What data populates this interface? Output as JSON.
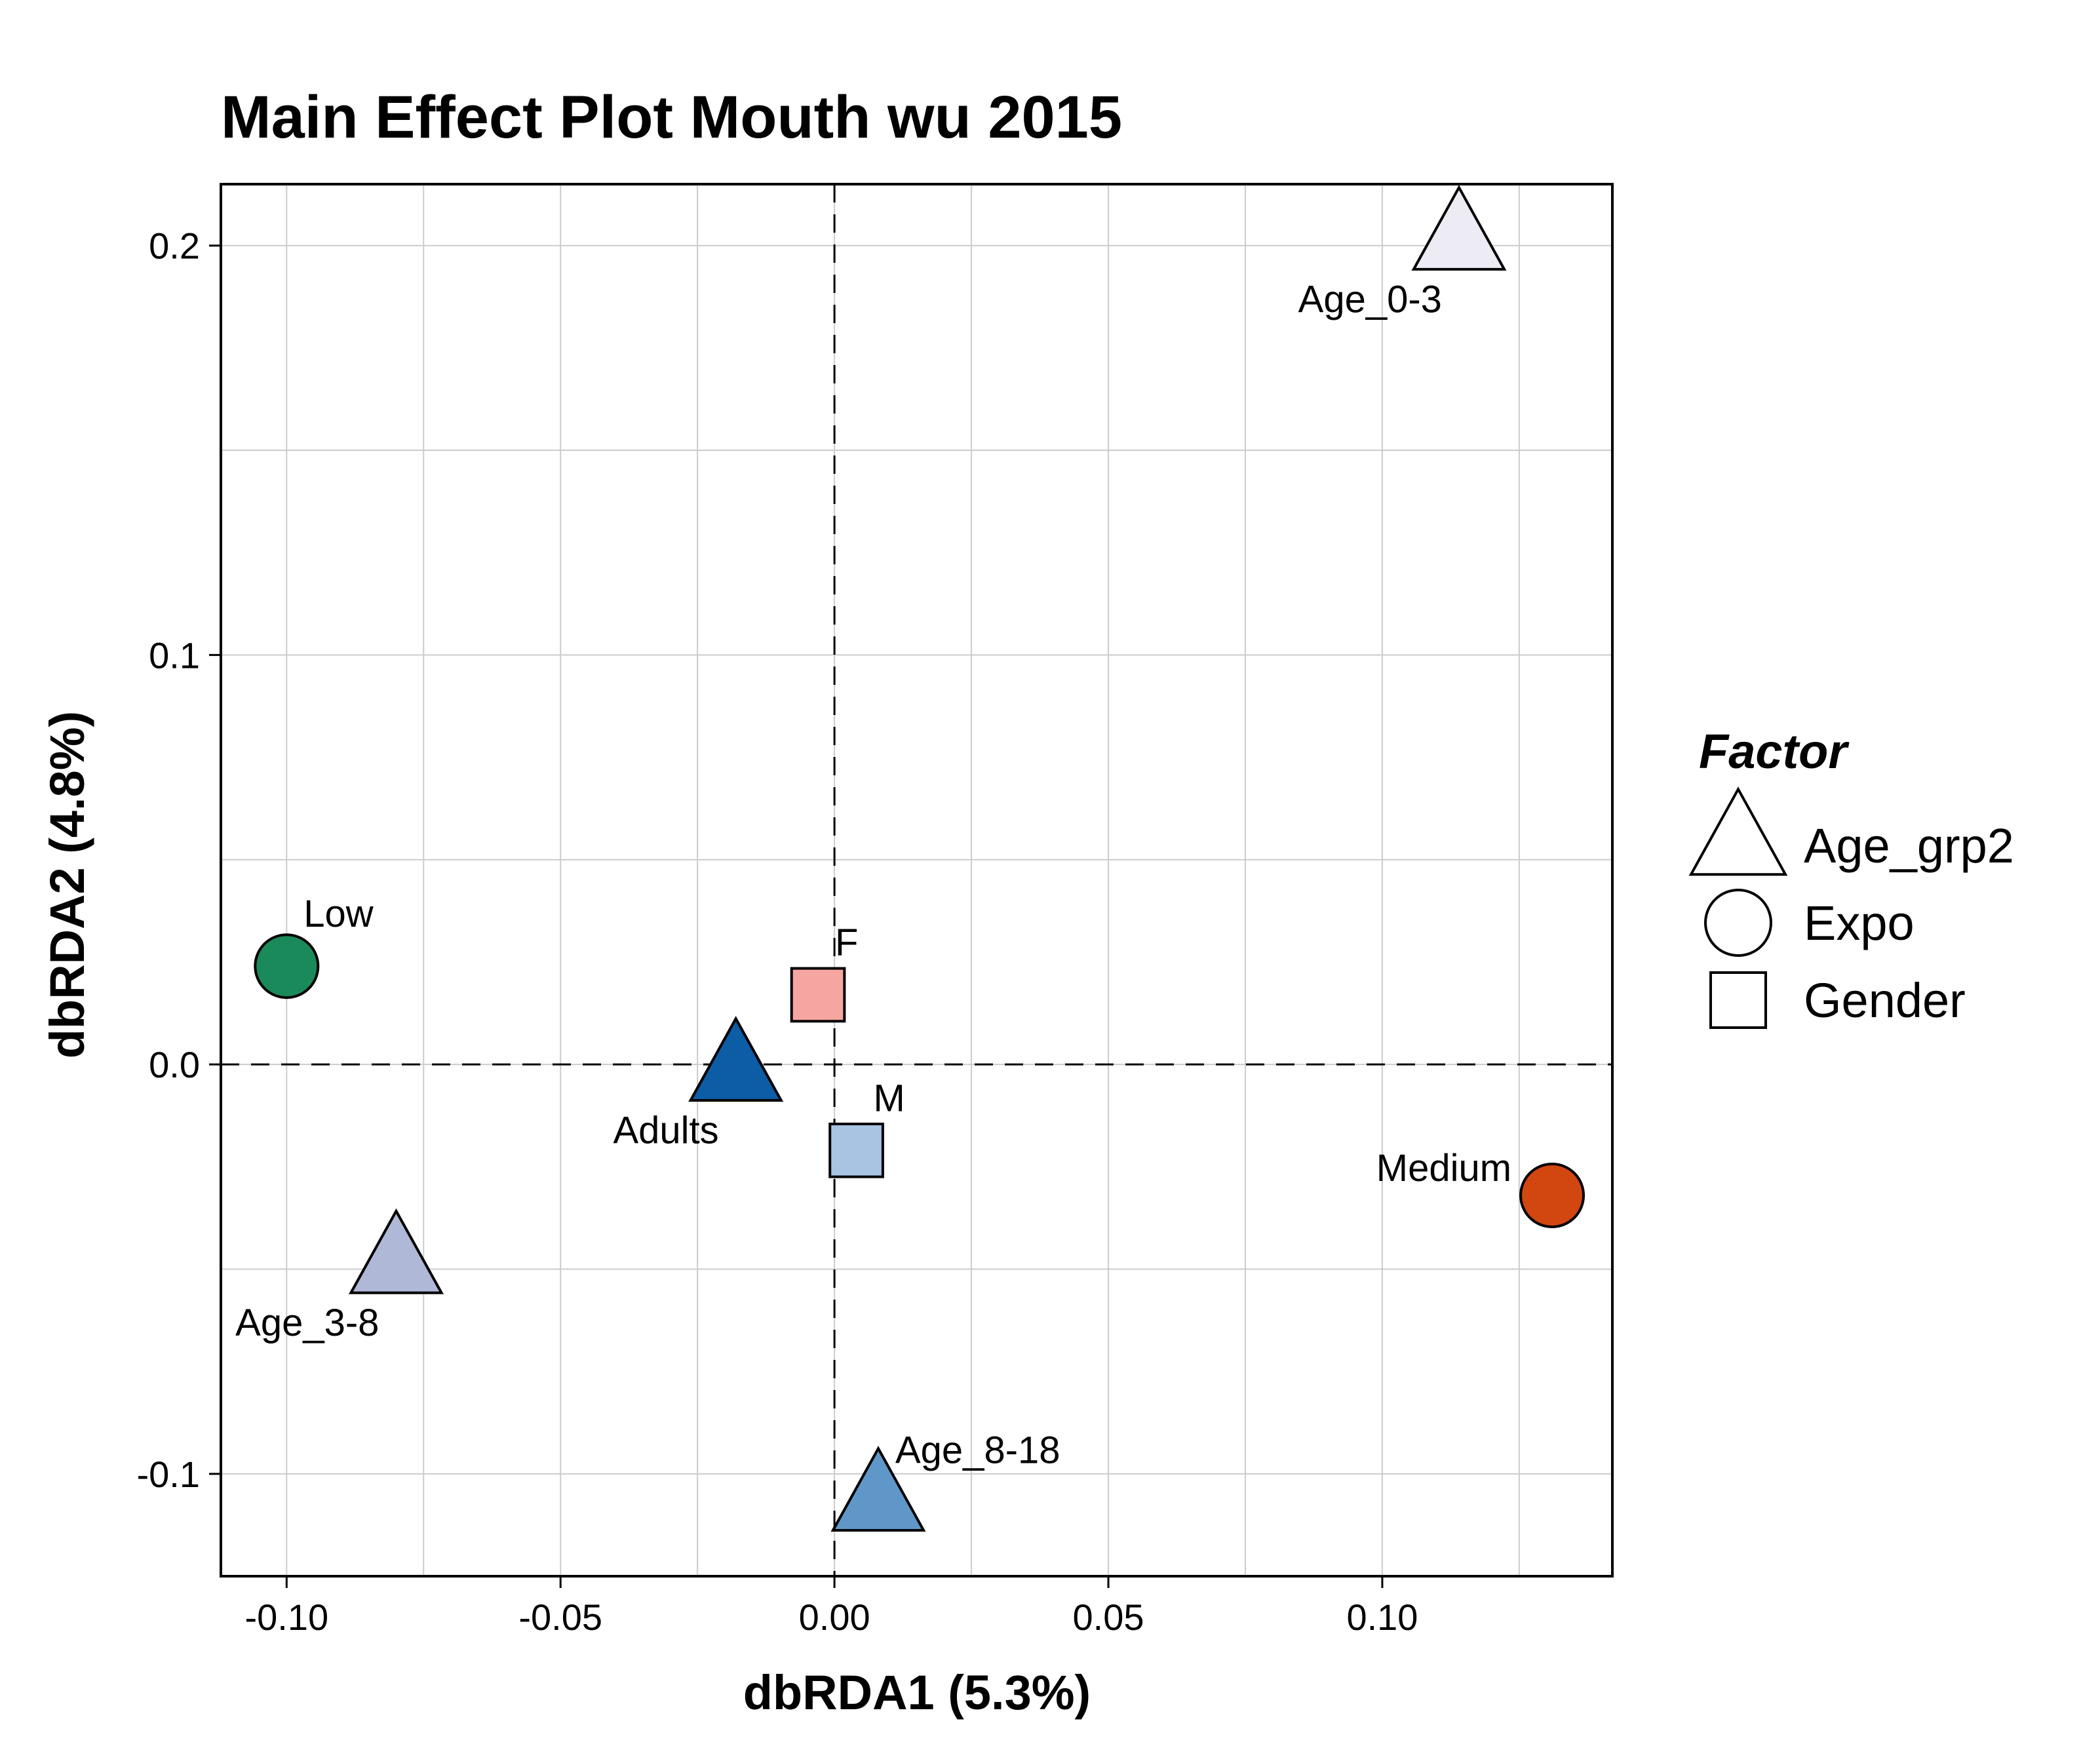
{
  "chart_data": {
    "type": "scatter",
    "title": "Main Effect Plot Mouth wu 2015",
    "xlabel": "dbRDA1 (5.3%)",
    "ylabel": "dbRDA2 (4.8%)",
    "xlim": [
      -0.112,
      0.142
    ],
    "ylim": [
      -0.125,
      0.215
    ],
    "x_ticks": [
      -0.1,
      -0.05,
      0.0,
      0.05,
      0.1
    ],
    "x_tick_labels": [
      "-0.10",
      "-0.05",
      "0.00",
      "0.05",
      "0.10"
    ],
    "y_ticks": [
      -0.1,
      0.0,
      0.1,
      0.2
    ],
    "y_tick_labels": [
      "-0.1",
      "0.0",
      "0.1",
      "0.2"
    ],
    "grid": true,
    "reference_lines": {
      "x": 0,
      "y": 0,
      "style": "dashed"
    },
    "legend": {
      "title": "Factor",
      "position": "right",
      "entries": [
        {
          "label": "Age_grp2",
          "shape": "triangle"
        },
        {
          "label": "Expo",
          "shape": "circle"
        },
        {
          "label": "Gender",
          "shape": "square"
        }
      ]
    },
    "points": [
      {
        "label": "Age_0-3",
        "factor": "Age_grp2",
        "shape": "triangle",
        "x": 0.114,
        "y": 0.201,
        "color": "#EDEBF4",
        "label_pos": "below-left"
      },
      {
        "label": "Low",
        "factor": "Expo",
        "shape": "circle",
        "x": -0.1,
        "y": 0.024,
        "color": "#1B8A5A",
        "label_pos": "above-right"
      },
      {
        "label": "F",
        "factor": "Gender",
        "shape": "square",
        "x": -0.003,
        "y": 0.017,
        "color": "#F6A6A0",
        "label_pos": "above-right"
      },
      {
        "label": "Adults",
        "factor": "Age_grp2",
        "shape": "triangle",
        "x": -0.018,
        "y": -0.002,
        "color": "#0D5CA6",
        "label_pos": "below-left"
      },
      {
        "label": "M",
        "factor": "Gender",
        "shape": "square",
        "x": 0.004,
        "y": -0.021,
        "color": "#A8C4E2",
        "label_pos": "above-right"
      },
      {
        "label": "Medium",
        "factor": "Expo",
        "shape": "circle",
        "x": 0.131,
        "y": -0.032,
        "color": "#D2460F",
        "label_pos": "left"
      },
      {
        "label": "Age_3-8",
        "factor": "Age_grp2",
        "shape": "triangle",
        "x": -0.08,
        "y": -0.049,
        "color": "#AFB8D6",
        "label_pos": "below-left"
      },
      {
        "label": "Age_8-18",
        "factor": "Age_grp2",
        "shape": "triangle",
        "x": 0.008,
        "y": -0.107,
        "color": "#5F98C8",
        "label_pos": "above-right"
      }
    ]
  }
}
